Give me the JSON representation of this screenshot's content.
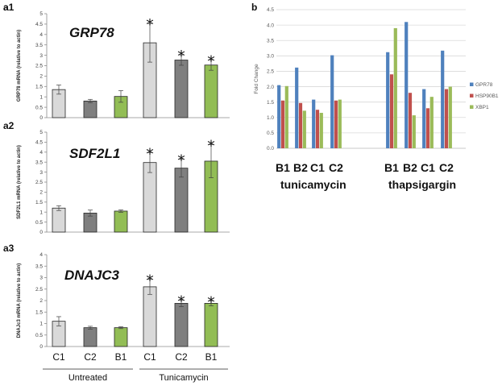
{
  "figure": {
    "panel_a_label": "a",
    "panel_b_label": "b"
  },
  "chart_data": [
    {
      "type": "bar",
      "panel_label": "a1",
      "title": "GRP78",
      "ylabel": "GRP78 mRNA (relative to actin)",
      "categories": [
        "C1",
        "C2",
        "B1",
        "C1",
        "C2",
        "B1"
      ],
      "values": [
        1.35,
        0.8,
        1.02,
        3.6,
        2.77,
        2.53
      ],
      "errors": [
        0.22,
        0.08,
        0.28,
        0.93,
        0.25,
        0.25
      ],
      "significant": [
        false,
        false,
        false,
        true,
        true,
        true
      ],
      "bar_colors": [
        "#d9d9d9",
        "#7f7f7f",
        "#92bd55",
        "#d9d9d9",
        "#7f7f7f",
        "#92bd55"
      ],
      "ylim": [
        0,
        5
      ],
      "yticks": [
        "0",
        "0.5",
        "1",
        "1.5",
        "2",
        "2.5",
        "3",
        "3.5",
        "4",
        "4.5",
        "5"
      ],
      "grid": false
    },
    {
      "type": "bar",
      "panel_label": "a2",
      "title": "SDF2L1",
      "ylabel": "SDF2L1 mRNA (relative to actin)",
      "categories": [
        "C1",
        "C2",
        "B1",
        "C1",
        "C2",
        "B1"
      ],
      "values": [
        1.2,
        0.95,
        1.05,
        3.48,
        3.2,
        3.55
      ],
      "errors": [
        0.12,
        0.15,
        0.06,
        0.5,
        0.45,
        0.83
      ],
      "significant": [
        false,
        false,
        false,
        true,
        true,
        true
      ],
      "bar_colors": [
        "#d9d9d9",
        "#7f7f7f",
        "#92bd55",
        "#d9d9d9",
        "#7f7f7f",
        "#92bd55"
      ],
      "ylim": [
        0,
        5
      ],
      "yticks": [
        "0",
        "0.5",
        "1",
        "1.5",
        "2",
        "2.5",
        "3",
        "3.5",
        "4",
        "4.5",
        "5"
      ],
      "grid": false
    },
    {
      "type": "bar",
      "panel_label": "a3",
      "title": "DNAJC3",
      "ylabel": "DNAJc3 mRNA (relative to actin)",
      "categories": [
        "C1",
        "C2",
        "B1",
        "C1",
        "C2",
        "B1"
      ],
      "values": [
        1.1,
        0.82,
        0.82,
        2.6,
        1.88,
        1.88
      ],
      "errors": [
        0.2,
        0.06,
        0.04,
        0.33,
        0.14,
        0.11
      ],
      "significant": [
        false,
        false,
        false,
        true,
        true,
        true
      ],
      "bar_colors": [
        "#d9d9d9",
        "#7f7f7f",
        "#92bd55",
        "#d9d9d9",
        "#7f7f7f",
        "#92bd55"
      ],
      "ylim": [
        0,
        4
      ],
      "yticks": [
        "0",
        "0.5",
        "1",
        "1.5",
        "2",
        "2.5",
        "3",
        "3.5",
        "4"
      ],
      "grid": false
    },
    {
      "type": "bar",
      "panel_label": "b",
      "ylabel": "Fold Change",
      "categories": [
        "B1",
        "B2",
        "C1",
        "C2",
        "B1",
        "B2",
        "C1",
        "C2"
      ],
      "groups": [
        "tunicamycin",
        "thapsigargin"
      ],
      "series": [
        {
          "name": "GPR78",
          "color": "#4f81bd",
          "values": [
            2.05,
            2.62,
            1.58,
            3.02,
            3.12,
            4.1,
            1.92,
            3.17
          ]
        },
        {
          "name": "HSP90B1",
          "color": "#c0504d",
          "values": [
            1.55,
            1.47,
            1.25,
            1.55,
            2.4,
            1.8,
            1.3,
            1.92
          ]
        },
        {
          "name": "XBP1",
          "color": "#9bbb59",
          "values": [
            2.02,
            1.22,
            1.15,
            1.58,
            3.9,
            1.07,
            1.67,
            2.0
          ]
        }
      ],
      "ylim": [
        0,
        4.5
      ],
      "yticks": [
        "0.0",
        "0.5",
        "1.0",
        "1.5",
        "2.0",
        "2.5",
        "3.0",
        "3.5",
        "4.0",
        "4.5"
      ],
      "legend_position": "right",
      "grid": true
    }
  ],
  "group_labels": {
    "untreated": "Untreated",
    "tunicamycin": "Tunicamycin"
  },
  "significance_marker": "*"
}
